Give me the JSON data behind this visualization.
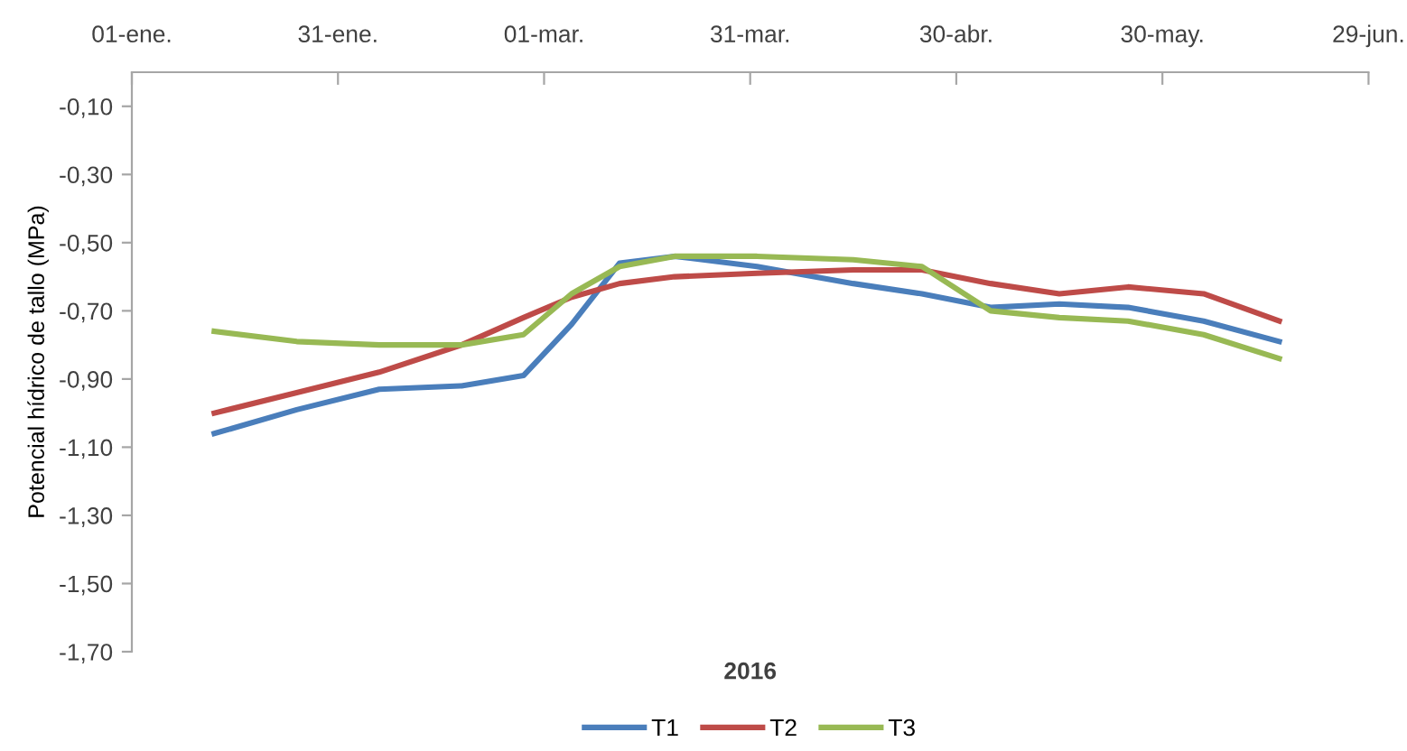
{
  "chart_data": {
    "type": "line",
    "xlabel": "2016",
    "ylabel": "Potencial hídrico de tallo (MPa)",
    "x": [
      "2016-01-13",
      "2016-01-25",
      "2016-02-06",
      "2016-02-18",
      "2016-02-27",
      "2016-03-05",
      "2016-03-12",
      "2016-03-20",
      "2016-04-01",
      "2016-04-15",
      "2016-04-25",
      "2016-05-05",
      "2016-05-15",
      "2016-05-25",
      "2016-06-05",
      "2016-06-16"
    ],
    "series": [
      {
        "name": "T1",
        "color": "#4a7ebb",
        "values": [
          -1.06,
          -0.99,
          -0.93,
          -0.92,
          -0.89,
          -0.74,
          -0.56,
          -0.54,
          -0.57,
          -0.62,
          -0.65,
          -0.69,
          -0.68,
          -0.69,
          -0.73,
          -0.79
        ]
      },
      {
        "name": "T2",
        "color": "#be4b48",
        "values": [
          -1.0,
          -0.94,
          -0.88,
          -0.8,
          -0.72,
          -0.66,
          -0.62,
          -0.6,
          -0.59,
          -0.58,
          -0.58,
          -0.62,
          -0.65,
          -0.63,
          -0.65,
          -0.73
        ]
      },
      {
        "name": "T3",
        "color": "#98b954",
        "values": [
          -0.76,
          -0.79,
          -0.8,
          -0.8,
          -0.77,
          -0.65,
          -0.57,
          -0.54,
          -0.54,
          -0.55,
          -0.57,
          -0.7,
          -0.72,
          -0.73,
          -0.77,
          -0.84
        ]
      }
    ],
    "xlim": [
      "2016-01-01",
      "2016-06-29"
    ],
    "xticks": [
      {
        "value": "2016-01-01",
        "label": "01-ene."
      },
      {
        "value": "2016-01-31",
        "label": "31-ene."
      },
      {
        "value": "2016-03-01",
        "label": "01-mar."
      },
      {
        "value": "2016-03-31",
        "label": "31-mar."
      },
      {
        "value": "2016-04-30",
        "label": "30-abr."
      },
      {
        "value": "2016-05-30",
        "label": "30-may."
      },
      {
        "value": "2016-06-29",
        "label": "29-jun."
      }
    ],
    "ylim": [
      -1.7,
      0
    ],
    "yticks": [
      {
        "value": -1.7,
        "label": "-1,70"
      },
      {
        "value": -1.5,
        "label": "-1,50"
      },
      {
        "value": -1.3,
        "label": "-1,30"
      },
      {
        "value": -1.1,
        "label": "-1,10"
      },
      {
        "value": -0.9,
        "label": "-0,90"
      },
      {
        "value": -0.7,
        "label": "-0,70"
      },
      {
        "value": -0.5,
        "label": "-0,50"
      },
      {
        "value": -0.3,
        "label": "-0,30"
      },
      {
        "value": -0.1,
        "label": "-0,10"
      }
    ],
    "grid": false,
    "legend": "bottom",
    "marker": "none",
    "line_style": "solid"
  }
}
